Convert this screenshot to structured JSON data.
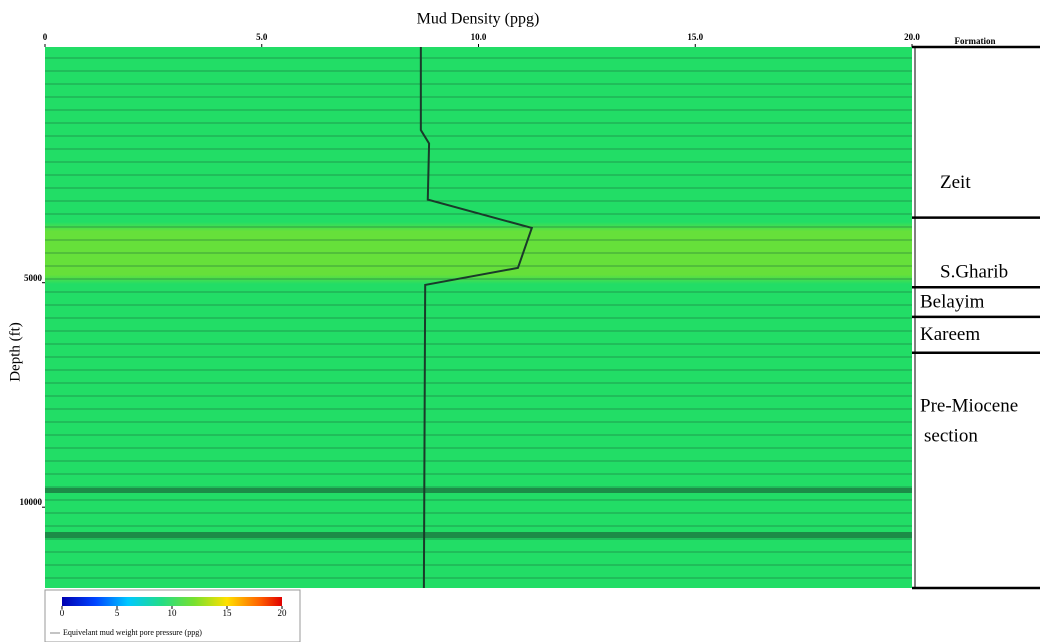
{
  "chart_data": {
    "type": "line",
    "xlabel": "Mud Density (ppg)",
    "ylabel": "Depth (ft)",
    "xlim": [
      0,
      20
    ],
    "xticks": [
      0,
      {
        "value": 5,
        "label": "5.0"
      },
      {
        "value": 10,
        "label": "10.0"
      },
      {
        "value": 15,
        "label": "15.0"
      },
      {
        "value": 20,
        "label": "20.0"
      }
    ],
    "ylim": [
      -250,
      11800
    ],
    "yticks": [
      5000,
      10000
    ],
    "y": [
      -250,
      1600,
      1900,
      3150,
      3780,
      4670,
      5050,
      11800
    ],
    "series": [
      {
        "name": "Equivelant mud weight pore pressure (ppg)",
        "color": "#1a3a2a",
        "values": [
          8.67,
          8.67,
          8.86,
          8.83,
          11.23,
          10.91,
          8.77,
          8.74
        ]
      }
    ],
    "formation_header": "Formation",
    "formations": [
      {
        "name": "Zeit",
        "top": -250
      },
      {
        "name": "S.Gharib",
        "top": 3550
      },
      {
        "name": "Belayim",
        "top": 5100
      },
      {
        "name": "Kareem",
        "top": 5760
      },
      {
        "name": "Pre-Miocene section",
        "top": 6560
      }
    ],
    "formation_base": 11800,
    "colorbar": {
      "lim": [
        0,
        20
      ],
      "ticks": [
        0,
        5,
        10,
        15,
        20
      ]
    }
  }
}
